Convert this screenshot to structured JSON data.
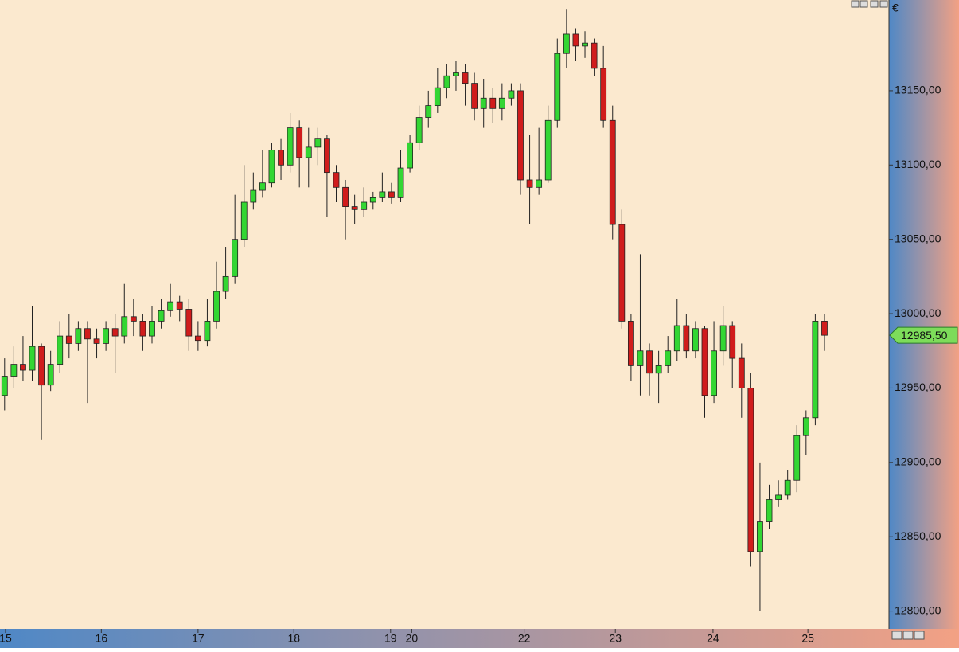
{
  "chart_data": {
    "type": "candlestick",
    "currency": "€",
    "up_color": "#33d633",
    "down_color": "#d01c1c",
    "open": [
      12945,
      12958,
      12966,
      12962,
      12978,
      12952,
      12966,
      12985,
      12980,
      12990,
      12983,
      12980,
      12990,
      12985,
      12998,
      12995,
      12985,
      12995,
      13002,
      13008,
      13003,
      12985,
      12982,
      12995,
      13015,
      13025,
      13050,
      13075,
      13083,
      13088,
      13110,
      13100,
      13125,
      13105,
      13112,
      13118,
      13095,
      13085,
      13072,
      13070,
      13075,
      13078,
      13082,
      13078,
      13098,
      13115,
      13132,
      13140,
      13152,
      13160,
      13162,
      13155,
      13138,
      13145,
      13138,
      13145,
      13150,
      13090,
      13085,
      13090,
      13130,
      13175,
      13188,
      13180,
      13182,
      13165,
      13130,
      13060,
      12995,
      12965,
      12975,
      12960,
      12965,
      12975,
      12992,
      12975,
      12990,
      12945,
      12975,
      12992,
      12970,
      12950,
      12840,
      12860,
      12875,
      12878,
      12888,
      12918,
      12930,
      12995
    ],
    "high": [
      12970,
      12978,
      12985,
      13005,
      12980,
      12975,
      12995,
      13000,
      12995,
      12995,
      12990,
      12995,
      13000,
      13020,
      13010,
      13000,
      13005,
      13010,
      13020,
      13012,
      13010,
      12995,
      13010,
      13035,
      13045,
      13080,
      13100,
      13095,
      13110,
      13115,
      13118,
      13135,
      13130,
      13125,
      13125,
      13120,
      13100,
      13090,
      13080,
      13085,
      13082,
      13095,
      13088,
      13110,
      13120,
      13140,
      13150,
      13165,
      13168,
      13170,
      13168,
      13162,
      13158,
      13152,
      13155,
      13155,
      13155,
      13120,
      13125,
      13140,
      13185,
      13205,
      13192,
      13190,
      13185,
      13180,
      13140,
      13070,
      13000,
      13040,
      12980,
      12975,
      12985,
      13010,
      13000,
      12995,
      12992,
      12995,
      13005,
      12995,
      12980,
      12960,
      12900,
      12885,
      12888,
      12895,
      12925,
      12935,
      13000,
      13000
    ],
    "low": [
      12935,
      12950,
      12955,
      12955,
      12915,
      12948,
      12960,
      12970,
      12975,
      12940,
      12970,
      12975,
      12960,
      12980,
      12985,
      12975,
      12980,
      12990,
      12998,
      12995,
      12975,
      12975,
      12978,
      12990,
      13010,
      13020,
      13045,
      13070,
      13078,
      13085,
      13090,
      13095,
      13085,
      13085,
      13100,
      13065,
      13075,
      13050,
      13060,
      13065,
      13070,
      13075,
      13074,
      13075,
      13095,
      13110,
      13125,
      13135,
      13145,
      13150,
      13140,
      13130,
      13125,
      13128,
      13130,
      13140,
      13080,
      13060,
      13080,
      13088,
      13125,
      13165,
      13170,
      13172,
      13160,
      13125,
      13050,
      12990,
      12955,
      12945,
      12945,
      12940,
      12960,
      12968,
      12970,
      12970,
      12930,
      12940,
      12965,
      12950,
      12930,
      12830,
      12800,
      12855,
      12870,
      12875,
      12880,
      12905,
      12925,
      12975
    ],
    "close": [
      12958,
      12966,
      12962,
      12978,
      12952,
      12966,
      12985,
      12980,
      12990,
      12983,
      12980,
      12990,
      12985,
      12998,
      12995,
      12985,
      12995,
      13002,
      13008,
      13003,
      12985,
      12982,
      12995,
      13015,
      13025,
      13050,
      13075,
      13083,
      13088,
      13110,
      13100,
      13125,
      13105,
      13112,
      13118,
      13095,
      13085,
      13072,
      13070,
      13075,
      13078,
      13082,
      13078,
      13098,
      13115,
      13132,
      13140,
      13152,
      13160,
      13162,
      13155,
      13138,
      13145,
      13138,
      13145,
      13150,
      13090,
      13085,
      13090,
      13130,
      13175,
      13188,
      13180,
      13182,
      13165,
      13130,
      13060,
      12995,
      12965,
      12975,
      12960,
      12965,
      12975,
      12992,
      12975,
      12990,
      12945,
      12975,
      12992,
      12970,
      12950,
      12840,
      12860,
      12875,
      12878,
      12888,
      12918,
      12930,
      12995,
      12985.5
    ],
    "xlim": [
      -0.5,
      96
    ],
    "xticks": [
      {
        "value": 0.1,
        "label": "15"
      },
      {
        "value": 10.5,
        "label": "16"
      },
      {
        "value": 21.0,
        "label": "17"
      },
      {
        "value": 31.4,
        "label": "18"
      },
      {
        "value": 41.9,
        "label": "19"
      },
      {
        "value": 44.2,
        "label": "20"
      },
      {
        "value": 56.4,
        "label": "22"
      },
      {
        "value": 66.3,
        "label": "23"
      },
      {
        "value": 76.9,
        "label": "24"
      },
      {
        "value": 87.2,
        "label": "25"
      }
    ],
    "ylim": [
      12788,
      13211
    ],
    "yticks": [
      {
        "value": 12800,
        "label": "12800,00"
      },
      {
        "value": 12850,
        "label": "12850,00"
      },
      {
        "value": 12900,
        "label": "12900,00"
      },
      {
        "value": 12950,
        "label": "12950,00"
      },
      {
        "value": 13000,
        "label": "13000,00"
      },
      {
        "value": 13050,
        "label": "13050,00"
      },
      {
        "value": 13100,
        "label": "13100,00"
      },
      {
        "value": 13150,
        "label": "13150,00"
      }
    ],
    "last_price": 12985.5,
    "last_price_label": "12985,50"
  }
}
